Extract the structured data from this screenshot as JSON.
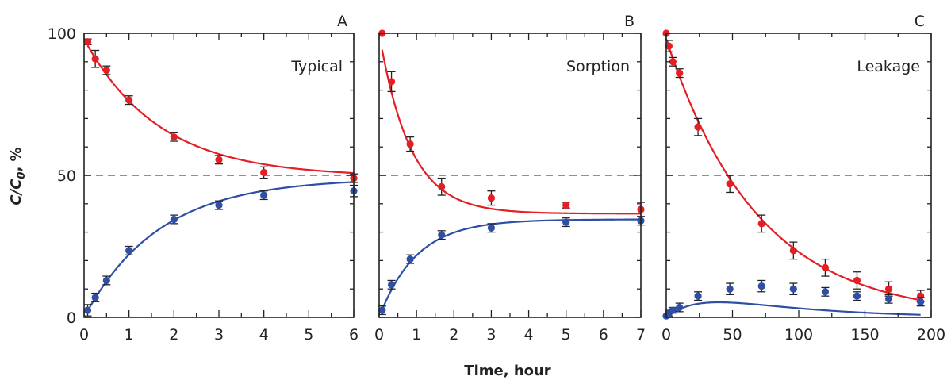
{
  "figure": {
    "ylabel": "C/C",
    "ylabel_sub": "0",
    "ylabel_suffix": ", %",
    "xlabel": "Time, hour",
    "colors": {
      "red": "#e31e24",
      "blue": "#2e4fa3",
      "reference": "#5cbd3c",
      "axis": "#222222"
    }
  },
  "chart_data": [
    {
      "type": "scatter",
      "letter": "A",
      "title": "Typical",
      "xlim": [
        0,
        6
      ],
      "ylim": [
        0,
        100
      ],
      "xticks": [
        0,
        1,
        2,
        3,
        4,
        5,
        6
      ],
      "yticks": [
        0,
        50,
        100
      ],
      "reference_line_y": 50,
      "series": [
        {
          "color": "red",
          "x": [
            0.08,
            0.25,
            0.5,
            1,
            2,
            3,
            4,
            6
          ],
          "y": [
            97,
            91,
            87,
            76.5,
            63.5,
            55.5,
            51,
            49
          ],
          "err": [
            1,
            3,
            1.5,
            1.5,
            1.5,
            1.5,
            2,
            1.5
          ],
          "fit": {
            "model": "exp_decay",
            "c": 49.5,
            "a": 48.5,
            "k": 0.6
          }
        },
        {
          "color": "blue",
          "x": [
            0.08,
            0.25,
            0.5,
            1,
            2,
            3,
            4,
            6
          ],
          "y": [
            2.5,
            7,
            13,
            23.5,
            34.5,
            39.5,
            43,
            44.5
          ],
          "err": [
            2,
            1.5,
            1.5,
            1.5,
            1.5,
            1.5,
            1.5,
            2
          ],
          "fit": {
            "model": "exp_rise",
            "c": 49,
            "a": 49,
            "k": 0.6
          }
        }
      ]
    },
    {
      "type": "scatter",
      "letter": "B",
      "title": "Sorption",
      "xlim": [
        0,
        7
      ],
      "ylim": [
        0,
        100
      ],
      "xticks": [
        0,
        1,
        2,
        3,
        4,
        5,
        6,
        7
      ],
      "yticks": [
        0,
        50,
        100
      ],
      "reference_line_y": 50,
      "series": [
        {
          "color": "red",
          "x": [
            0.08,
            0.33,
            0.83,
            1.67,
            3,
            5,
            7
          ],
          "y": [
            100,
            83,
            61,
            46,
            42,
            39.5,
            38
          ],
          "err": [
            0.5,
            3.5,
            2.5,
            3,
            2.5,
            1,
            2.5
          ],
          "fit": {
            "model": "exp_decay",
            "c": 36.5,
            "a": 63.5,
            "k": 1.2
          }
        },
        {
          "color": "blue",
          "x": [
            0.08,
            0.33,
            0.83,
            1.67,
            3,
            5,
            7
          ],
          "y": [
            2.5,
            11.5,
            20.5,
            29,
            31.5,
            33.5,
            34
          ],
          "err": [
            1.5,
            1.5,
            1.5,
            1.5,
            1.5,
            1.5,
            1.5
          ],
          "fit": {
            "model": "exp_rise",
            "c": 34.5,
            "a": 34.5,
            "k": 1.0
          }
        }
      ]
    },
    {
      "type": "scatter",
      "letter": "C",
      "title": "Leakage",
      "xlim": [
        0,
        200
      ],
      "ylim": [
        0,
        100
      ],
      "xticks": [
        0,
        50,
        100,
        150,
        200
      ],
      "yticks": [
        0,
        50,
        100
      ],
      "reference_line_y": 50,
      "series": [
        {
          "color": "red",
          "x": [
            0,
            2,
            5,
            10,
            24,
            48,
            72,
            96,
            120,
            144,
            168,
            192
          ],
          "y": [
            100,
            95.5,
            90,
            86,
            67,
            47,
            33,
            23.5,
            17.5,
            13,
            10,
            7.5
          ],
          "err": [
            0.5,
            2,
            1.5,
            1.5,
            3,
            3,
            3,
            3,
            3,
            3,
            2.5,
            2
          ],
          "fit": {
            "model": "exp_decay",
            "c": 0,
            "a": 98,
            "k": 0.0145
          }
        },
        {
          "color": "blue",
          "x": [
            0,
            2,
            5,
            10,
            24,
            48,
            72,
            96,
            120,
            144,
            168,
            192
          ],
          "y": [
            0.5,
            1.5,
            2.5,
            3.5,
            7.5,
            10,
            11,
            10,
            9,
            7.5,
            6.5,
            5.5
          ],
          "err": [
            0.5,
            1,
            1,
            1.5,
            1.5,
            2,
            2,
            2,
            1.5,
            1.5,
            1.5,
            1.5
          ],
          "fit": {
            "model": "rise_fall",
            "A": 14.8,
            "k1": 0.0145,
            "k2": 0.04
          }
        }
      ]
    }
  ]
}
